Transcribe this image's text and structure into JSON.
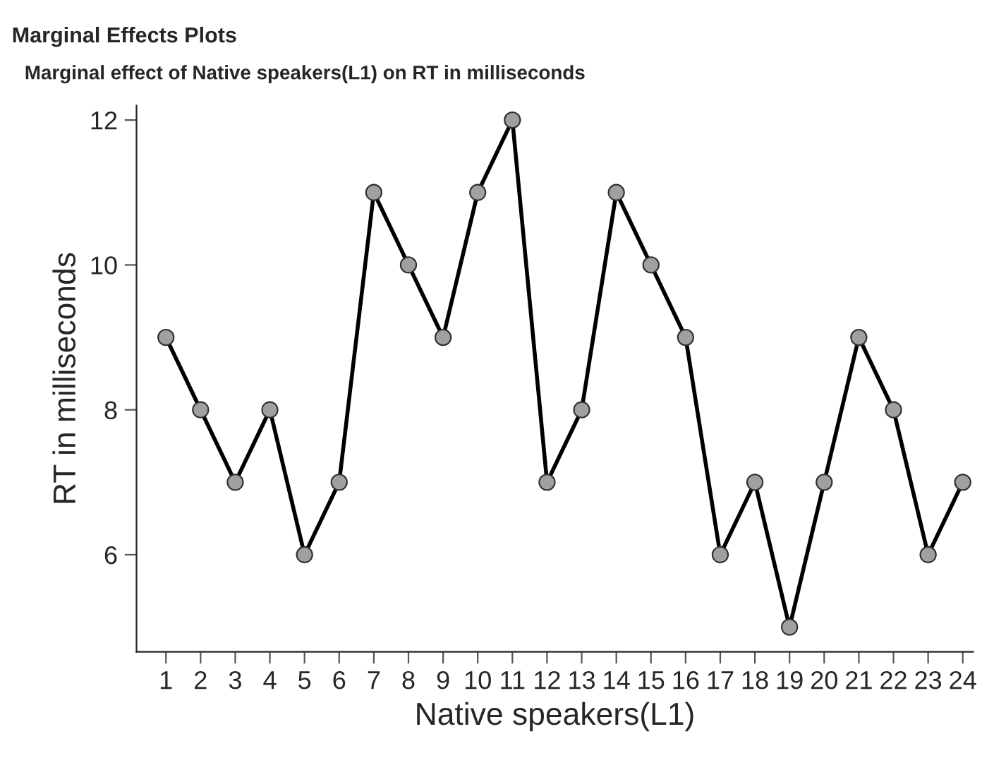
{
  "chart_data": {
    "type": "line",
    "title": "Marginal Effects Plots",
    "subtitle": "Marginal effect of Native speakers(L1) on RT in milliseconds",
    "xlabel": "Native speakers(L1)",
    "ylabel": "RT in milliseconds",
    "x": [
      1,
      2,
      3,
      4,
      5,
      6,
      7,
      8,
      9,
      10,
      11,
      12,
      13,
      14,
      15,
      16,
      17,
      18,
      19,
      20,
      21,
      22,
      23,
      24
    ],
    "series": [
      {
        "color": "#000000",
        "values": [
          9,
          8,
          7,
          8,
          6,
          7,
          11,
          10,
          9,
          11,
          12,
          7,
          8,
          11,
          10,
          9,
          6,
          7,
          5,
          7,
          9,
          8,
          6,
          7
        ]
      }
    ],
    "xlim": [
      0.15,
      24.3
    ],
    "ylim": [
      4.66,
      12.2
    ],
    "xticks": [
      1,
      2,
      3,
      4,
      5,
      6,
      7,
      8,
      9,
      10,
      11,
      12,
      13,
      14,
      15,
      16,
      17,
      18,
      19,
      20,
      21,
      22,
      23,
      24
    ],
    "yticks": [
      6,
      8,
      10,
      12
    ],
    "marker": "circle",
    "line_style": "solid",
    "grid": false,
    "legend": false
  }
}
